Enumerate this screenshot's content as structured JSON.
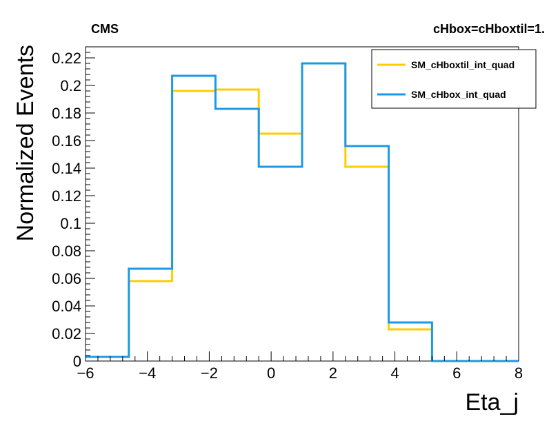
{
  "chart_data": {
    "type": "line",
    "labels": {
      "experiment": "CMS",
      "operator": "cHbox=cHboxtil=1."
    },
    "xlabel": "Eta_j",
    "ylabel": "Normalized Events",
    "xlim": [
      -6,
      8
    ],
    "ylim": [
      0,
      0.228
    ],
    "x_ticks": [
      -6,
      -4,
      -2,
      0,
      2,
      4,
      6,
      8
    ],
    "x_tick_labels": [
      "−6",
      "−4",
      "−2",
      "0",
      "2",
      "4",
      "6",
      "8"
    ],
    "y_ticks": [
      0,
      0.02,
      0.04,
      0.06,
      0.08,
      0.1,
      0.12,
      0.14,
      0.16,
      0.18,
      0.2,
      0.22
    ],
    "y_tick_labels": [
      "0",
      "0.02",
      "0.04",
      "0.06",
      "0.08",
      "0.1",
      "0.12",
      "0.14",
      "0.16",
      "0.18",
      "0.2",
      "0.22"
    ],
    "bin_edges": [
      -6,
      -4.6,
      -3.2,
      -1.8,
      -0.4,
      1.0,
      2.4,
      3.8,
      5.2,
      6.6,
      8.0
    ],
    "legend_position": "top-right",
    "grid": false,
    "series": [
      {
        "name": "SM_cHboxtil_int_quad",
        "color": "#ffcc00",
        "values": [
          0.003,
          0.058,
          0.196,
          0.197,
          0.165,
          0.216,
          0.141,
          0.023,
          0.0,
          0.0
        ]
      },
      {
        "name": "SM_cHbox_int_quad",
        "color": "#1a9ae6",
        "values": [
          0.003,
          0.067,
          0.207,
          0.183,
          0.141,
          0.216,
          0.156,
          0.028,
          0.0,
          0.0
        ]
      }
    ]
  }
}
